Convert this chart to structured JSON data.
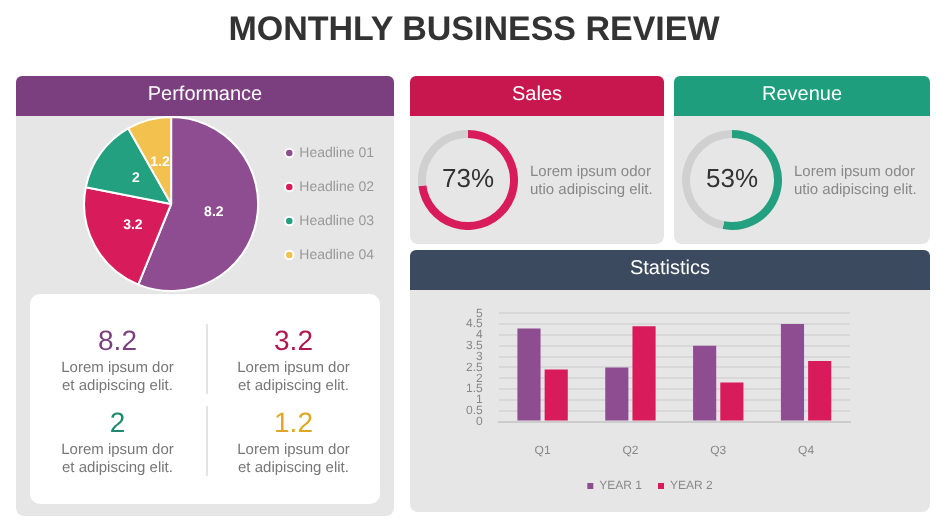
{
  "chart_data": [
    {
      "type": "other",
      "title": "MONTHLY BUSINESS REVIEW"
    },
    {
      "type": "pie",
      "title": "Performance",
      "categories": [
        "Headline 01",
        "Headline 02",
        "Headline 03",
        "Headline 04"
      ],
      "values": [
        8.2,
        3.2,
        2,
        1.2
      ],
      "colors": [
        "#8e4d91",
        "#d81b5a",
        "#22a07f",
        "#f2c14e"
      ],
      "data_labels": true,
      "legend": "right"
    },
    {
      "type": "other",
      "annotations": [
        "8.2",
        "Lorem ipsum dor et adipiscing elit.",
        "3.2",
        "Lorem ipsum dor et adipiscing elit.",
        "2",
        "Lorem ipsum dor et adipiscing elit.",
        "1.2",
        "Lorem ipsum dor et adipiscing elit."
      ],
      "colors": [
        "#7b3f7f",
        "#b0174f",
        "#1f8a6e",
        "#e0a820"
      ]
    },
    {
      "type": "donut",
      "title": "Sales",
      "categories": [
        null,
        null
      ],
      "values": [
        73,
        27
      ],
      "colors": [
        "#d81b5a",
        "#d0d0d0"
      ],
      "value_labels": [
        "73%",
        null
      ],
      "annotations": [
        "Lorem ipsum odor utio adipiscing elit."
      ]
    },
    {
      "type": "donut",
      "title": "Revenue",
      "categories": [
        null,
        null
      ],
      "values": [
        53,
        47
      ],
      "colors": [
        "#22a07f",
        "#d0d0d0"
      ],
      "value_labels": [
        "53%",
        null
      ],
      "annotations": [
        "Lorem ipsum odor utio adipiscing elit."
      ]
    },
    {
      "type": "bar",
      "title": "Statistics",
      "categories": [
        "Q1",
        "Q2",
        "Q3",
        "Q4"
      ],
      "series": [
        {
          "name": "YEAR 1",
          "color": "#8e4d91",
          "values": [
            4.3,
            2.5,
            3.5,
            4.5
          ]
        },
        {
          "name": "YEAR 2",
          "color": "#d81b5a",
          "values": [
            2.4,
            4.4,
            1.8,
            2.8
          ]
        }
      ],
      "ylim": [
        0,
        5
      ],
      "yticks": [
        0,
        0.5,
        1,
        1.5,
        2,
        2.5,
        3,
        3.5,
        4,
        4.5,
        5
      ],
      "grid": "y",
      "legend": "bottom"
    }
  ]
}
